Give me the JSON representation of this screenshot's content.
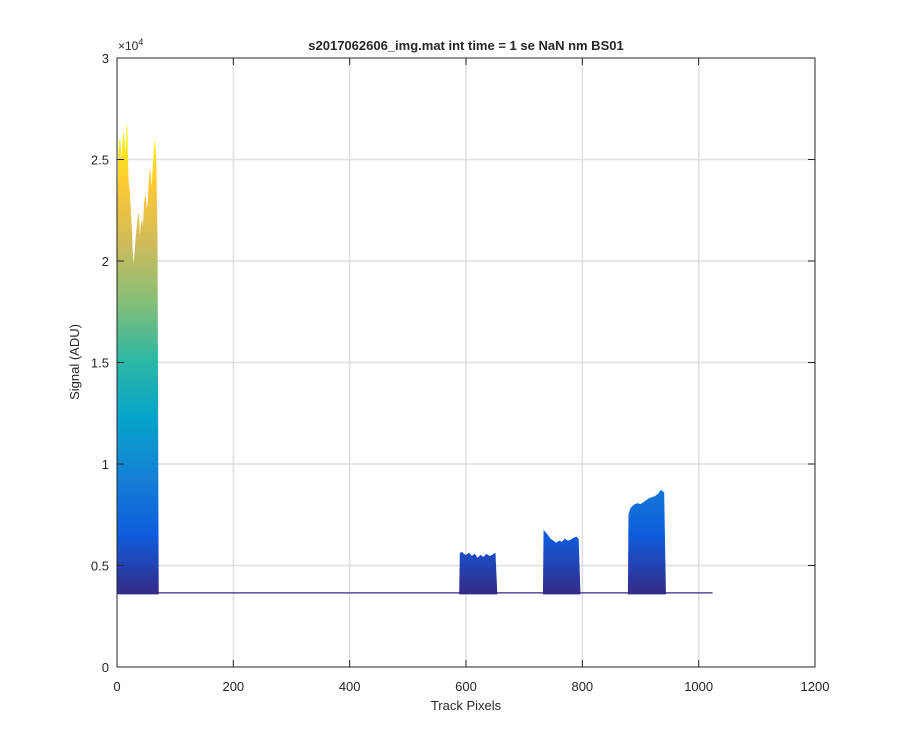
{
  "chart_data": {
    "type": "area",
    "title": "s2017062606_img.mat int time = 1 se  NaN nm BS01",
    "xlabel": "Track Pixels",
    "ylabel": "Signal (ADU)",
    "y_exponent_label": "×10",
    "y_exponent": "4",
    "xlim": [
      0,
      1200
    ],
    "ylim": [
      0,
      30000
    ],
    "x_ticks": [
      0,
      200,
      400,
      600,
      800,
      1000,
      1200
    ],
    "x_tick_labels": [
      "0",
      "200",
      "400",
      "600",
      "800",
      "1000",
      "1200"
    ],
    "y_ticks": [
      0,
      5000,
      10000,
      15000,
      20000,
      25000,
      30000
    ],
    "y_tick_labels": [
      "0",
      "0.5",
      "1",
      "1.5",
      "2",
      "2.5",
      "3"
    ],
    "grid": true,
    "colormap": "parula",
    "colormap_stops": [
      "#352a87",
      "#0f5cdd",
      "#1481d6",
      "#06a4ca",
      "#2eb7a4",
      "#87bf77",
      "#d1bb59",
      "#fec832",
      "#f9fb0e"
    ],
    "baseline": 3600,
    "series": [
      {
        "x": [
          1,
          3,
          5,
          7,
          9,
          11,
          13,
          15,
          17,
          19,
          21,
          23,
          25,
          27,
          29,
          31,
          33,
          35,
          37,
          39,
          41,
          43,
          45,
          47,
          49,
          51,
          53,
          55,
          57,
          59,
          61,
          63,
          65,
          67,
          69,
          71
        ],
        "y": [
          22000,
          25500,
          26000,
          25000,
          25200,
          26300,
          25800,
          24800,
          26700,
          24000,
          23500,
          22500,
          21500,
          20000,
          19800,
          20500,
          21200,
          21800,
          22300,
          21000,
          21600,
          22000,
          21400,
          22800,
          23200,
          22400,
          22700,
          23800,
          24500,
          23400,
          24000,
          25100,
          25900,
          24800,
          21000,
          3700
        ]
      },
      {
        "x": [
          590,
          593,
          596,
          600,
          605,
          610,
          615,
          620,
          625,
          630,
          635,
          640,
          645,
          650,
          653
        ],
        "y": [
          5600,
          5650,
          5550,
          5500,
          5600,
          5450,
          5550,
          5350,
          5500,
          5400,
          5550,
          5450,
          5500,
          5600,
          3700
        ]
      },
      {
        "x": [
          734,
          737,
          740,
          745,
          750,
          755,
          760,
          765,
          770,
          775,
          780,
          785,
          790,
          793,
          796
        ],
        "y": [
          6700,
          6600,
          6500,
          6300,
          6200,
          6100,
          6200,
          6150,
          6300,
          6200,
          6250,
          6350,
          6400,
          6300,
          3700
        ]
      },
      {
        "x": [
          880,
          883,
          886,
          890,
          895,
          900,
          905,
          910,
          915,
          920,
          925,
          930,
          935,
          940,
          943
        ],
        "y": [
          7500,
          7800,
          7900,
          8000,
          8050,
          8000,
          8100,
          8200,
          8300,
          8350,
          8400,
          8500,
          8700,
          8600,
          3700
        ]
      }
    ],
    "baseline_line": {
      "x": [
        0,
        1024
      ],
      "y": [
        3650,
        3650
      ]
    }
  }
}
